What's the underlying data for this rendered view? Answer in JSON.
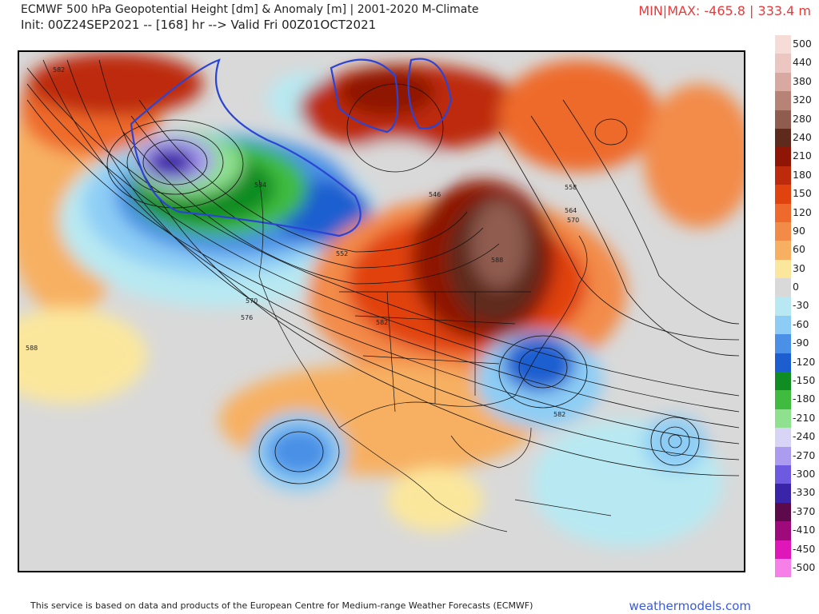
{
  "header": {
    "title_line1": "ECMWF 500 hPa Geopotential Height [dm] & Anomaly [m] | 2001-2020 M-Climate",
    "title_line2": "Init: 00Z24SEP2021 -- [168] hr --> Valid Fri 00Z01OCT2021",
    "minmax": "MIN|MAX: -465.8 | 333.4 m"
  },
  "legend": {
    "items": [
      {
        "label": "500",
        "color": "#f5dcd7"
      },
      {
        "label": "440",
        "color": "#ecc6c0"
      },
      {
        "label": "380",
        "color": "#d8a9a1"
      },
      {
        "label": "320",
        "color": "#b88377"
      },
      {
        "label": "280",
        "color": "#8f5c50"
      },
      {
        "label": "240",
        "color": "#5e2a1c"
      },
      {
        "label": "210",
        "color": "#8f1606"
      },
      {
        "label": "180",
        "color": "#bd2a0c"
      },
      {
        "label": "150",
        "color": "#e1430f"
      },
      {
        "label": "120",
        "color": "#ee6a2c"
      },
      {
        "label": "90",
        "color": "#f38b48"
      },
      {
        "label": "60",
        "color": "#f7b062"
      },
      {
        "label": "30",
        "color": "#fbe79c"
      },
      {
        "label": "0",
        "color": "#d9d9d9"
      },
      {
        "label": "-30",
        "color": "#b8e9f2"
      },
      {
        "label": "-60",
        "color": "#8dcdf5"
      },
      {
        "label": "-90",
        "color": "#4a90e6"
      },
      {
        "label": "-120",
        "color": "#1c5ed0"
      },
      {
        "label": "-150",
        "color": "#0f8c22"
      },
      {
        "label": "-180",
        "color": "#3fbb3f"
      },
      {
        "label": "-210",
        "color": "#8fe08f"
      },
      {
        "label": "-240",
        "color": "#d8d4f5"
      },
      {
        "label": "-270",
        "color": "#ab9cf0"
      },
      {
        "label": "-300",
        "color": "#6e5ae0"
      },
      {
        "label": "-330",
        "color": "#3a24a8"
      },
      {
        "label": "-370",
        "color": "#5c0a4a"
      },
      {
        "label": "-410",
        "color": "#9e0a7c"
      },
      {
        "label": "-450",
        "color": "#e017b8"
      },
      {
        "label": "-500",
        "color": "#f77fe8"
      }
    ]
  },
  "contour_labels": [
    "582",
    "534",
    "552",
    "570",
    "576",
    "588",
    "558",
    "564",
    "570",
    "546",
    "582",
    "582",
    "588"
  ],
  "footer": {
    "credit": "This service is based on data and products of the European Centre for Medium-range Weather Forecasts (ECMWF)",
    "brand": "weathermodels.com"
  }
}
